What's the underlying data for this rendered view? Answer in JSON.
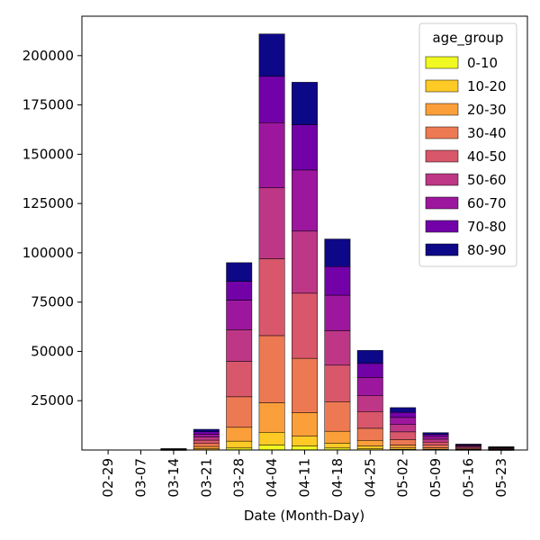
{
  "chart_data": {
    "type": "bar",
    "stacked": true,
    "title": "",
    "xlabel": "Date (Month-Day)",
    "ylabel": "",
    "ylim": [
      0,
      220000
    ],
    "yticks": [
      25000,
      50000,
      75000,
      100000,
      125000,
      150000,
      175000,
      200000
    ],
    "categories": [
      "02-29",
      "03-07",
      "03-14",
      "03-21",
      "03-28",
      "04-04",
      "04-11",
      "04-18",
      "04-25",
      "05-02",
      "05-09",
      "05-16",
      "05-23"
    ],
    "legend": {
      "title": "age_group",
      "position": "upper right"
    },
    "grid": false,
    "series": [
      {
        "name": "0-10",
        "color": "#f0f921",
        "values": [
          0,
          0,
          20,
          150,
          1000,
          2500,
          2000,
          1000,
          600,
          300,
          100,
          40,
          20
        ]
      },
      {
        "name": "10-20",
        "color": "#fdca26",
        "values": [
          0,
          0,
          40,
          450,
          3500,
          6500,
          5000,
          2500,
          1400,
          700,
          300,
          100,
          50
        ]
      },
      {
        "name": "20-30",
        "color": "#fb9f3a",
        "values": [
          0,
          0,
          90,
          1200,
          7000,
          15000,
          12000,
          6000,
          2900,
          1500,
          700,
          250,
          130
        ]
      },
      {
        "name": "30-40",
        "color": "#ed7953",
        "values": [
          0,
          0,
          100,
          1500,
          15500,
          34000,
          27500,
          15000,
          6100,
          2800,
          1300,
          450,
          250
        ]
      },
      {
        "name": "40-50",
        "color": "#d8576b",
        "values": [
          0,
          0,
          110,
          1700,
          18000,
          39000,
          33000,
          18500,
          8500,
          3900,
          1600,
          550,
          300
        ]
      },
      {
        "name": "50-60",
        "color": "#bd3786",
        "values": [
          0,
          0,
          100,
          1600,
          16000,
          36000,
          31500,
          17500,
          8000,
          3700,
          1500,
          500,
          280
        ]
      },
      {
        "name": "60-70",
        "color": "#9c179e",
        "values": [
          0,
          0,
          90,
          1400,
          15000,
          33000,
          31000,
          18000,
          9300,
          3600,
          1400,
          450,
          250
        ]
      },
      {
        "name": "70-80",
        "color": "#7201a8",
        "values": [
          0,
          0,
          80,
          1300,
          9500,
          23500,
          23000,
          14500,
          7100,
          2600,
          1000,
          350,
          200
        ]
      },
      {
        "name": "80-90",
        "color": "#0d0887",
        "values": [
          0,
          0,
          70,
          1200,
          9500,
          21500,
          21500,
          14000,
          6600,
          2400,
          900,
          300,
          170
        ]
      }
    ]
  }
}
